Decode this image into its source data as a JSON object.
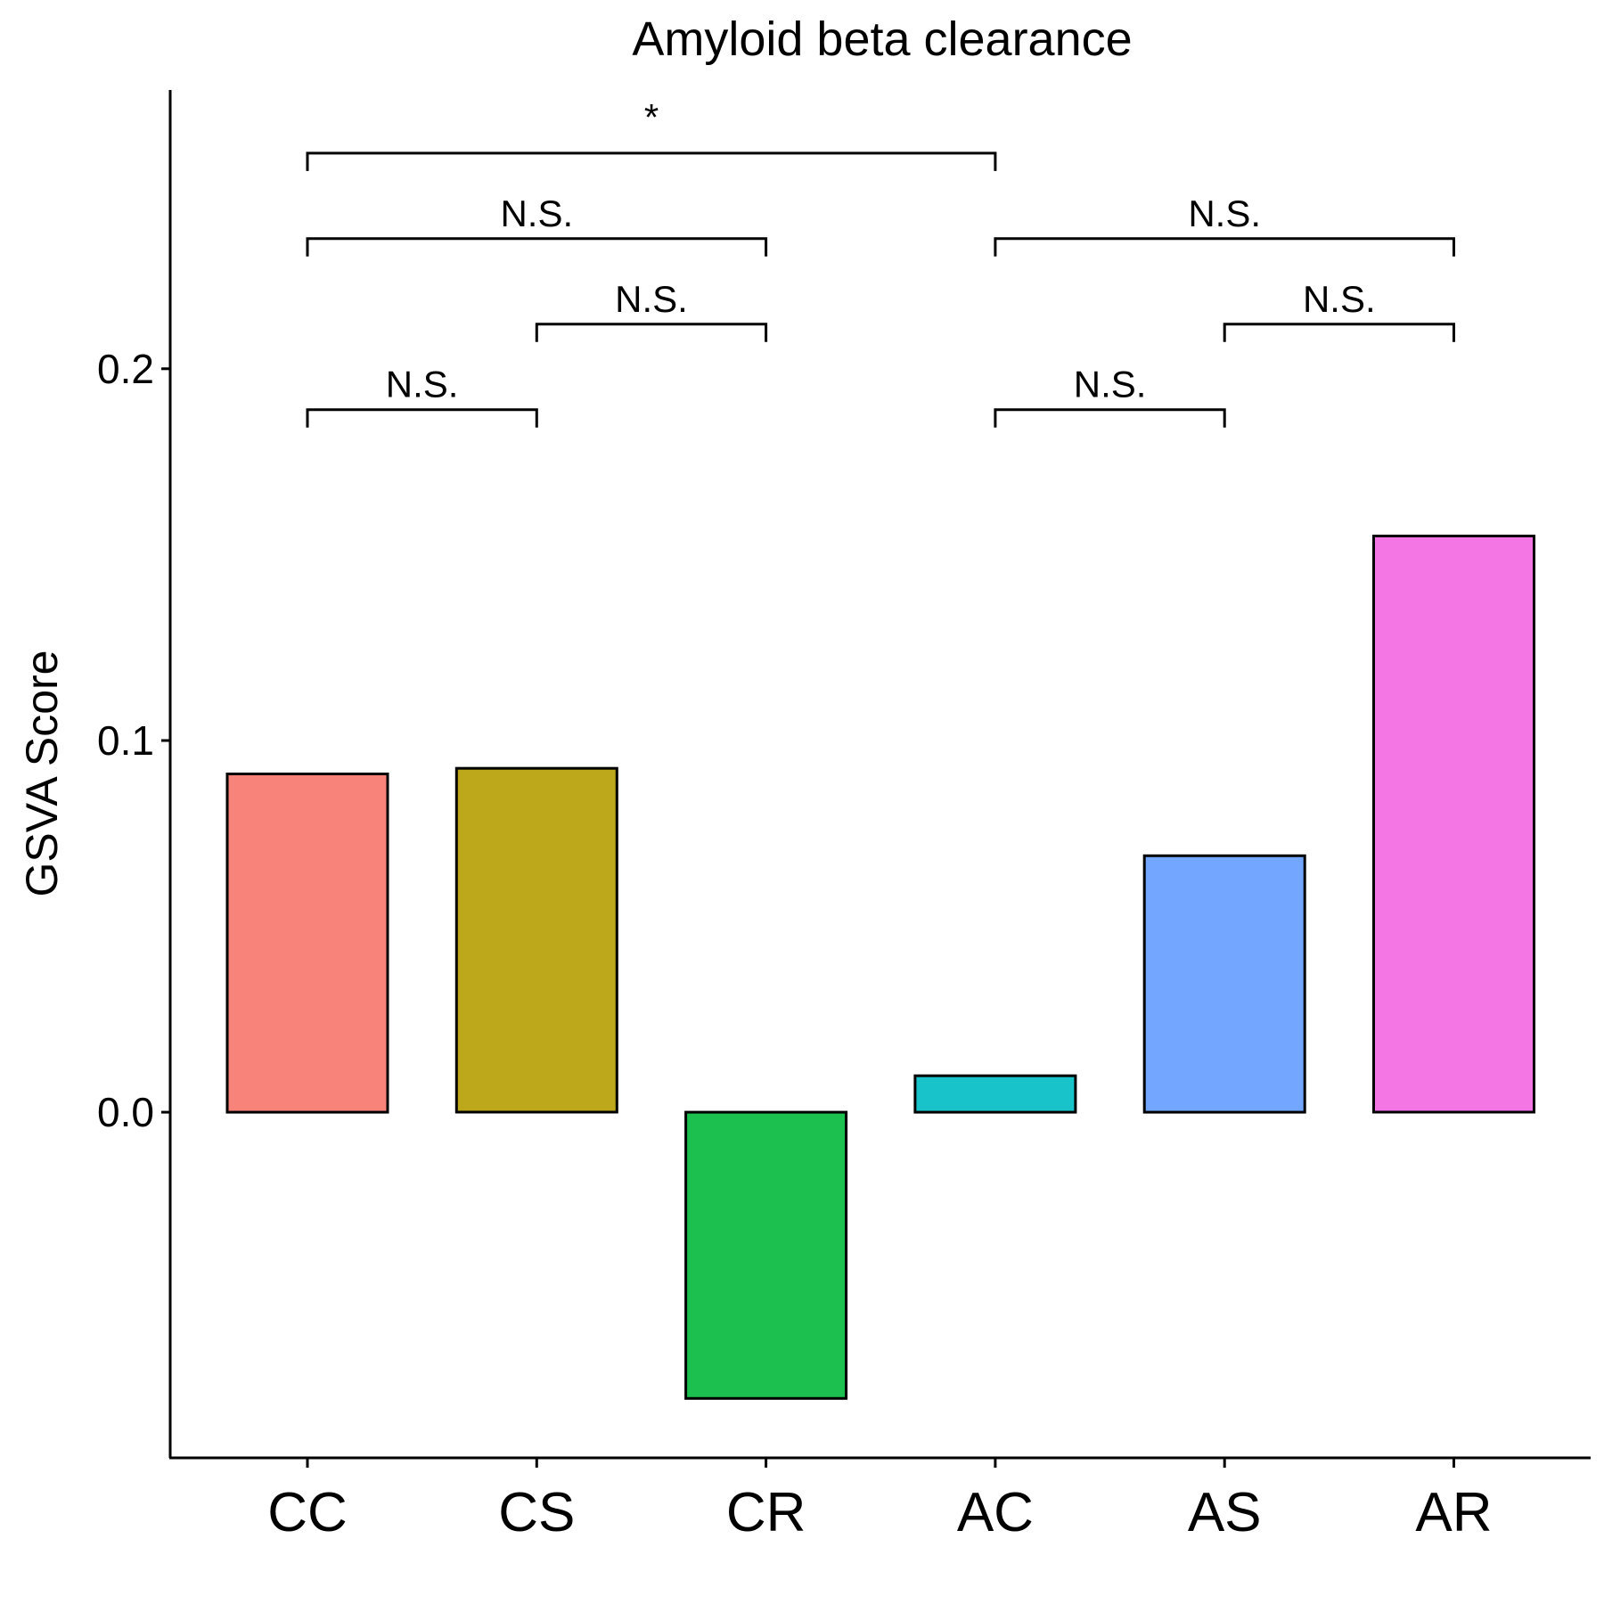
{
  "chart_data": {
    "type": "bar",
    "title": "Amyloid beta clearance",
    "xlabel": "",
    "ylabel": "GSVA Score",
    "categories": [
      "CC",
      "CS",
      "CR",
      "AC",
      "AS",
      "AR"
    ],
    "values": [
      0.091,
      0.0925,
      -0.077,
      0.0098,
      0.069,
      0.155
    ],
    "colors": [
      "#F8837B",
      "#BDA71A",
      "#1BC04E",
      "#19C3CA",
      "#72A6FF",
      "#F476E4"
    ],
    "ylim": [
      -0.093,
      0.275
    ],
    "yticks": [
      0.0,
      0.1,
      0.2
    ],
    "ytick_labels": [
      "0.0",
      "0.1",
      "0.2"
    ],
    "grid": false,
    "legend": "none",
    "comparisons": [
      {
        "from": "CC",
        "to": "CS",
        "label": "N.S.",
        "y": 0.189
      },
      {
        "from": "CS",
        "to": "CR",
        "label": "N.S.",
        "y": 0.212
      },
      {
        "from": "CC",
        "to": "CR",
        "label": "N.S.",
        "y": 0.235
      },
      {
        "from": "CC",
        "to": "AC",
        "label": "*",
        "y": 0.258
      },
      {
        "from": "AC",
        "to": "AS",
        "label": "N.S.",
        "y": 0.189
      },
      {
        "from": "AS",
        "to": "AR",
        "label": "N.S.",
        "y": 0.212
      },
      {
        "from": "AC",
        "to": "AR",
        "label": "N.S.",
        "y": 0.235
      }
    ]
  }
}
